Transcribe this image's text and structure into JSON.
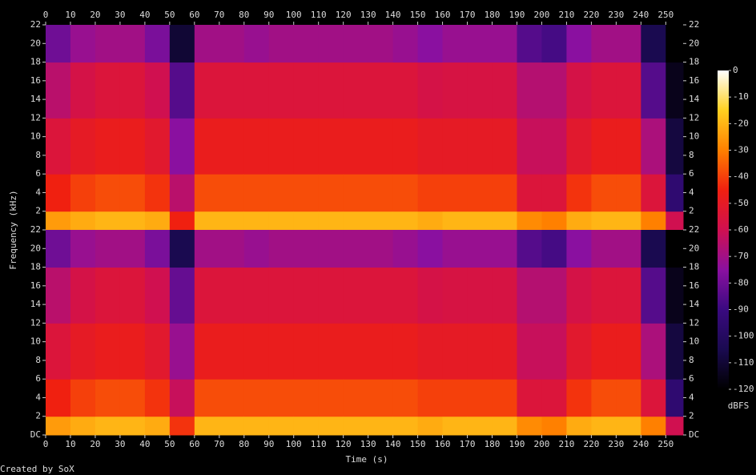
{
  "chart_data": {
    "type": "spectrogram",
    "x_label": "Time (s)",
    "y_label": "Frequency (kHz)",
    "colorbar_label": "dBFS",
    "credit": "Created by SoX",
    "xlim": [
      0,
      257
    ],
    "xticks": [
      0,
      10,
      20,
      30,
      40,
      50,
      60,
      70,
      80,
      90,
      100,
      110,
      120,
      130,
      140,
      150,
      160,
      170,
      180,
      190,
      200,
      210,
      220,
      230,
      240,
      250
    ],
    "ylim": [
      0,
      22
    ],
    "yticks": [
      {
        "value": 0,
        "label": "DC"
      },
      2,
      4,
      6,
      8,
      10,
      12,
      14,
      16,
      18,
      20,
      22
    ],
    "clim": [
      -120,
      0
    ],
    "cticks": [
      0,
      -10,
      -20,
      -30,
      -40,
      -50,
      -60,
      -70,
      -80,
      -90,
      -100,
      -110,
      -120
    ],
    "colormap": [
      "#000000",
      "#1a0a50",
      "#3a0a80",
      "#8a10a0",
      "#d01050",
      "#f02010",
      "#ff8000",
      "#ffd020",
      "#ffffff"
    ],
    "time_bins": [
      0,
      10,
      20,
      30,
      40,
      50,
      60,
      70,
      80,
      90,
      100,
      110,
      120,
      130,
      140,
      150,
      160,
      170,
      180,
      190,
      200,
      210,
      220,
      230,
      240,
      250,
      257
    ],
    "frequency_bins": [
      0,
      2,
      6,
      12,
      18,
      22
    ],
    "series": [
      {
        "values": [
          [
            -25,
            -45,
            -55,
            -65,
            -80
          ],
          [
            -22,
            -40,
            -50,
            -58,
            -72
          ],
          [
            -20,
            -38,
            -48,
            -55,
            -70
          ],
          [
            -20,
            -38,
            -48,
            -55,
            -70
          ],
          [
            -22,
            -42,
            -52,
            -60,
            -78
          ],
          [
            -45,
            -65,
            -75,
            -85,
            -110
          ],
          [
            -20,
            -38,
            -48,
            -55,
            -70
          ],
          [
            -20,
            -38,
            -48,
            -55,
            -70
          ],
          [
            -20,
            -38,
            -48,
            -55,
            -72
          ],
          [
            -20,
            -38,
            -48,
            -55,
            -70
          ],
          [
            -20,
            -38,
            -48,
            -55,
            -70
          ],
          [
            -20,
            -38,
            -48,
            -55,
            -70
          ],
          [
            -20,
            -38,
            -48,
            -55,
            -70
          ],
          [
            -20,
            -38,
            -48,
            -55,
            -70
          ],
          [
            -20,
            -38,
            -48,
            -55,
            -72
          ],
          [
            -22,
            -40,
            -50,
            -58,
            -75
          ],
          [
            -20,
            -40,
            -50,
            -57,
            -72
          ],
          [
            -20,
            -40,
            -50,
            -57,
            -72
          ],
          [
            -20,
            -40,
            -50,
            -57,
            -72
          ],
          [
            -28,
            -55,
            -62,
            -66,
            -85
          ],
          [
            -30,
            -55,
            -62,
            -66,
            -88
          ],
          [
            -22,
            -42,
            -52,
            -58,
            -75
          ],
          [
            -20,
            -38,
            -48,
            -55,
            -70
          ],
          [
            -20,
            -38,
            -48,
            -55,
            -70
          ],
          [
            -30,
            -55,
            -68,
            -85,
            -105
          ],
          [
            -60,
            -95,
            -108,
            -115,
            -120
          ]
        ]
      },
      {
        "values": [
          [
            -25,
            -45,
            -55,
            -65,
            -80
          ],
          [
            -22,
            -40,
            -50,
            -58,
            -72
          ],
          [
            -20,
            -38,
            -48,
            -55,
            -70
          ],
          [
            -20,
            -38,
            -48,
            -55,
            -70
          ],
          [
            -22,
            -42,
            -52,
            -60,
            -78
          ],
          [
            -42,
            -62,
            -72,
            -82,
            -105
          ],
          [
            -20,
            -38,
            -48,
            -55,
            -70
          ],
          [
            -20,
            -38,
            -48,
            -55,
            -70
          ],
          [
            -20,
            -38,
            -48,
            -55,
            -72
          ],
          [
            -20,
            -38,
            -48,
            -55,
            -70
          ],
          [
            -20,
            -38,
            -48,
            -55,
            -70
          ],
          [
            -20,
            -38,
            -48,
            -55,
            -70
          ],
          [
            -20,
            -38,
            -48,
            -55,
            -70
          ],
          [
            -20,
            -38,
            -48,
            -55,
            -70
          ],
          [
            -20,
            -38,
            -48,
            -55,
            -72
          ],
          [
            -22,
            -40,
            -50,
            -58,
            -75
          ],
          [
            -20,
            -40,
            -50,
            -57,
            -72
          ],
          [
            -20,
            -40,
            -50,
            -57,
            -72
          ],
          [
            -20,
            -40,
            -50,
            -57,
            -72
          ],
          [
            -28,
            -55,
            -62,
            -66,
            -85
          ],
          [
            -30,
            -55,
            -62,
            -66,
            -88
          ],
          [
            -22,
            -42,
            -52,
            -58,
            -75
          ],
          [
            -20,
            -38,
            -48,
            -55,
            -70
          ],
          [
            -20,
            -38,
            -48,
            -55,
            -70
          ],
          [
            -30,
            -55,
            -68,
            -85,
            -105
          ],
          [
            -60,
            -95,
            -108,
            -115,
            -120
          ]
        ]
      }
    ]
  }
}
